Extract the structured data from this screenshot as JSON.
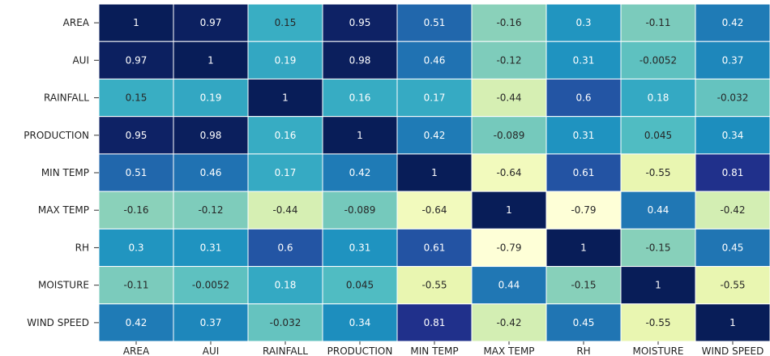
{
  "chart_data": {
    "type": "heatmap",
    "title": "",
    "xlabel": "",
    "ylabel": "",
    "colormap": "YlGnBu",
    "value_range": [
      -0.8,
      1.0
    ],
    "grid": true,
    "row_labels": [
      "AREA",
      "AUI",
      "RAINFALL",
      "PRODUCTION",
      "MIN TEMP",
      "MAX TEMP",
      "RH",
      "MOISTURE",
      "WIND SPEED"
    ],
    "column_labels": [
      "AREA",
      "AUI",
      "RAINFALL",
      "PRODUCTION",
      "MIN TEMP",
      "MAX TEMP",
      "RH",
      "MOISTURE",
      "WIND SPEED"
    ],
    "values": [
      [
        1,
        0.97,
        0.15,
        0.95,
        0.51,
        -0.16,
        0.3,
        -0.11,
        0.42
      ],
      [
        0.97,
        1,
        0.19,
        0.98,
        0.46,
        -0.12,
        0.31,
        -0.0052,
        0.37
      ],
      [
        0.15,
        0.19,
        1,
        0.16,
        0.17,
        -0.44,
        0.6,
        0.18,
        -0.032
      ],
      [
        0.95,
        0.98,
        0.16,
        1,
        0.42,
        -0.089,
        0.31,
        0.045,
        0.34
      ],
      [
        0.51,
        0.46,
        0.17,
        0.42,
        1,
        -0.64,
        0.61,
        -0.55,
        0.81
      ],
      [
        -0.16,
        -0.12,
        -0.44,
        -0.089,
        -0.64,
        1,
        -0.79,
        0.44,
        -0.42
      ],
      [
        0.3,
        0.31,
        0.6,
        0.31,
        0.61,
        -0.79,
        1,
        -0.15,
        0.45
      ],
      [
        -0.11,
        -0.0052,
        0.18,
        0.045,
        -0.55,
        0.44,
        -0.15,
        1,
        -0.55
      ],
      [
        0.42,
        0.37,
        -0.032,
        0.34,
        0.81,
        -0.42,
        0.45,
        -0.55,
        1
      ]
    ]
  }
}
